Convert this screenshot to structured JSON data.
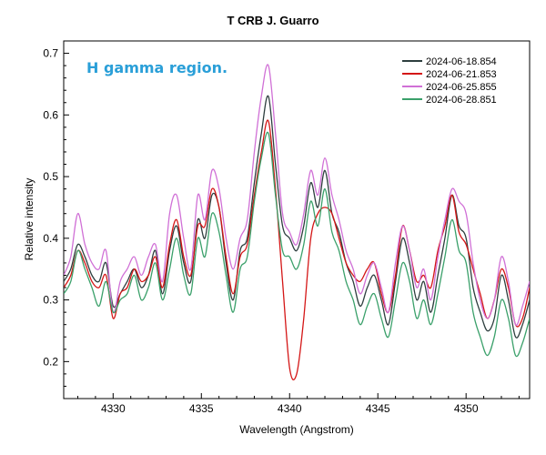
{
  "chart_data": {
    "type": "line",
    "title": "T CRB   J. Guarro",
    "xlabel": "Wavelength (Angstrom)",
    "ylabel": "Relative intensity",
    "xlim": [
      4327.2,
      4353.6
    ],
    "ylim": [
      0.14,
      0.72
    ],
    "xticks": [
      4330,
      4335,
      4340,
      4345,
      4350
    ],
    "yticks": [
      0.2,
      0.3,
      0.4,
      0.5,
      0.6,
      0.7
    ],
    "ytick_labels": [
      "0.2",
      "0.3",
      "0.4",
      "0.5",
      "0.6",
      "0.7"
    ],
    "grid": false,
    "legend_position": "top-right",
    "annotation": {
      "text": "H gamma region.",
      "color": "#2a9fd8"
    },
    "x": [
      4327.2,
      4327.6,
      4328.0,
      4328.4,
      4328.8,
      4329.2,
      4329.6,
      4330.0,
      4330.4,
      4330.8,
      4331.2,
      4331.6,
      4332.0,
      4332.4,
      4332.8,
      4333.2,
      4333.6,
      4334.0,
      4334.4,
      4334.8,
      4335.2,
      4335.6,
      4336.0,
      4336.4,
      4336.8,
      4337.2,
      4337.6,
      4338.0,
      4338.4,
      4338.8,
      4339.2,
      4339.6,
      4340.0,
      4340.4,
      4340.8,
      4341.2,
      4341.6,
      4342.0,
      4342.4,
      4342.8,
      4343.2,
      4343.6,
      4344.0,
      4344.4,
      4344.8,
      4345.2,
      4345.6,
      4346.0,
      4346.4,
      4346.8,
      4347.2,
      4347.6,
      4348.0,
      4348.4,
      4348.8,
      4349.2,
      4349.6,
      4350.0,
      4350.4,
      4350.8,
      4351.2,
      4351.6,
      4352.0,
      4352.4,
      4352.8,
      4353.2,
      4353.6
    ],
    "series": [
      {
        "name": "2024-06-18.854",
        "color": "#2d3e3e",
        "values": [
          0.33,
          0.35,
          0.39,
          0.37,
          0.34,
          0.33,
          0.36,
          0.29,
          0.31,
          0.33,
          0.35,
          0.32,
          0.34,
          0.38,
          0.31,
          0.38,
          0.42,
          0.36,
          0.33,
          0.43,
          0.4,
          0.47,
          0.45,
          0.36,
          0.3,
          0.38,
          0.4,
          0.49,
          0.57,
          0.63,
          0.52,
          0.42,
          0.4,
          0.38,
          0.42,
          0.49,
          0.45,
          0.51,
          0.44,
          0.41,
          0.36,
          0.33,
          0.29,
          0.32,
          0.34,
          0.3,
          0.26,
          0.33,
          0.4,
          0.36,
          0.3,
          0.33,
          0.28,
          0.34,
          0.4,
          0.47,
          0.42,
          0.4,
          0.32,
          0.28,
          0.25,
          0.27,
          0.34,
          0.3,
          0.24,
          0.26,
          0.3
        ]
      },
      {
        "name": "2024-06-21.853",
        "color": "#d41616",
        "values": [
          0.32,
          0.34,
          0.38,
          0.36,
          0.33,
          0.32,
          0.34,
          0.27,
          0.31,
          0.32,
          0.35,
          0.33,
          0.34,
          0.37,
          0.32,
          0.39,
          0.43,
          0.37,
          0.34,
          0.42,
          0.42,
          0.48,
          0.45,
          0.37,
          0.31,
          0.37,
          0.39,
          0.47,
          0.54,
          0.59,
          0.48,
          0.33,
          0.19,
          0.18,
          0.27,
          0.4,
          0.44,
          0.45,
          0.44,
          0.4,
          0.36,
          0.34,
          0.33,
          0.35,
          0.36,
          0.31,
          0.28,
          0.34,
          0.42,
          0.38,
          0.33,
          0.34,
          0.32,
          0.38,
          0.42,
          0.47,
          0.41,
          0.39,
          0.35,
          0.31,
          0.27,
          0.3,
          0.35,
          0.32,
          0.26,
          0.27,
          0.32
        ]
      },
      {
        "name": "2024-06-25.855",
        "color": "#d070d6",
        "values": [
          0.34,
          0.37,
          0.44,
          0.39,
          0.36,
          0.35,
          0.38,
          0.28,
          0.33,
          0.35,
          0.37,
          0.34,
          0.37,
          0.39,
          0.33,
          0.44,
          0.47,
          0.4,
          0.35,
          0.47,
          0.43,
          0.51,
          0.48,
          0.4,
          0.35,
          0.4,
          0.43,
          0.54,
          0.63,
          0.68,
          0.57,
          0.44,
          0.41,
          0.39,
          0.44,
          0.51,
          0.47,
          0.53,
          0.47,
          0.43,
          0.38,
          0.35,
          0.31,
          0.34,
          0.36,
          0.32,
          0.28,
          0.36,
          0.42,
          0.38,
          0.32,
          0.35,
          0.3,
          0.37,
          0.43,
          0.48,
          0.46,
          0.44,
          0.36,
          0.3,
          0.27,
          0.3,
          0.37,
          0.33,
          0.26,
          0.29,
          0.33
        ]
      },
      {
        "name": "2024-06-28.851",
        "color": "#3aa06a",
        "values": [
          0.31,
          0.33,
          0.38,
          0.35,
          0.32,
          0.29,
          0.33,
          0.28,
          0.3,
          0.31,
          0.34,
          0.3,
          0.32,
          0.36,
          0.3,
          0.35,
          0.4,
          0.34,
          0.31,
          0.4,
          0.37,
          0.44,
          0.41,
          0.34,
          0.28,
          0.35,
          0.37,
          0.46,
          0.53,
          0.57,
          0.47,
          0.38,
          0.37,
          0.35,
          0.39,
          0.46,
          0.42,
          0.48,
          0.41,
          0.38,
          0.33,
          0.3,
          0.26,
          0.29,
          0.31,
          0.27,
          0.24,
          0.3,
          0.36,
          0.33,
          0.27,
          0.3,
          0.26,
          0.31,
          0.37,
          0.43,
          0.38,
          0.36,
          0.28,
          0.24,
          0.21,
          0.24,
          0.3,
          0.27,
          0.21,
          0.23,
          0.27
        ]
      }
    ]
  }
}
